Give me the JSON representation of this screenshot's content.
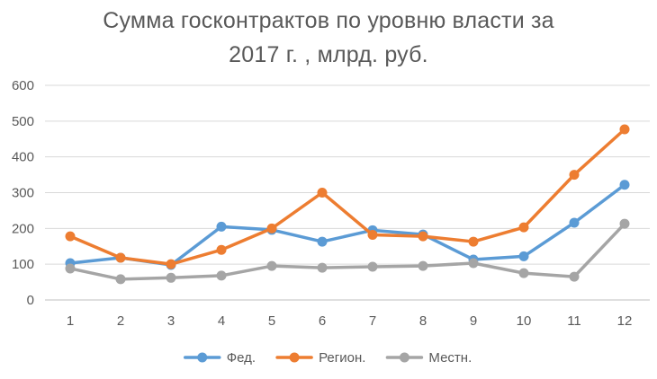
{
  "chart_data": {
    "type": "line",
    "title_line1": "Сумма госконтрактов по уровню власти за",
    "title_line2": "2017 г. , млрд. руб.",
    "categories": [
      "1",
      "2",
      "3",
      "4",
      "5",
      "6",
      "7",
      "8",
      "9",
      "10",
      "11",
      "12"
    ],
    "y_ticks": [
      "0",
      "100",
      "200",
      "300",
      "400",
      "500",
      "600"
    ],
    "ylim": [
      0,
      600
    ],
    "grid": true,
    "legend_position": "bottom",
    "series": [
      {
        "name": "Фед.",
        "color": "#5b9bd5",
        "values": [
          103,
          118,
          98,
          205,
          196,
          163,
          195,
          183,
          113,
          122,
          216,
          322
        ]
      },
      {
        "name": "Регион.",
        "color": "#ed7d31",
        "values": [
          178,
          118,
          100,
          140,
          200,
          300,
          182,
          178,
          163,
          203,
          350,
          477
        ]
      },
      {
        "name": "Местн.",
        "color": "#a5a5a5",
        "values": [
          88,
          58,
          62,
          68,
          95,
          90,
          93,
          95,
          103,
          75,
          65,
          213
        ]
      }
    ]
  }
}
